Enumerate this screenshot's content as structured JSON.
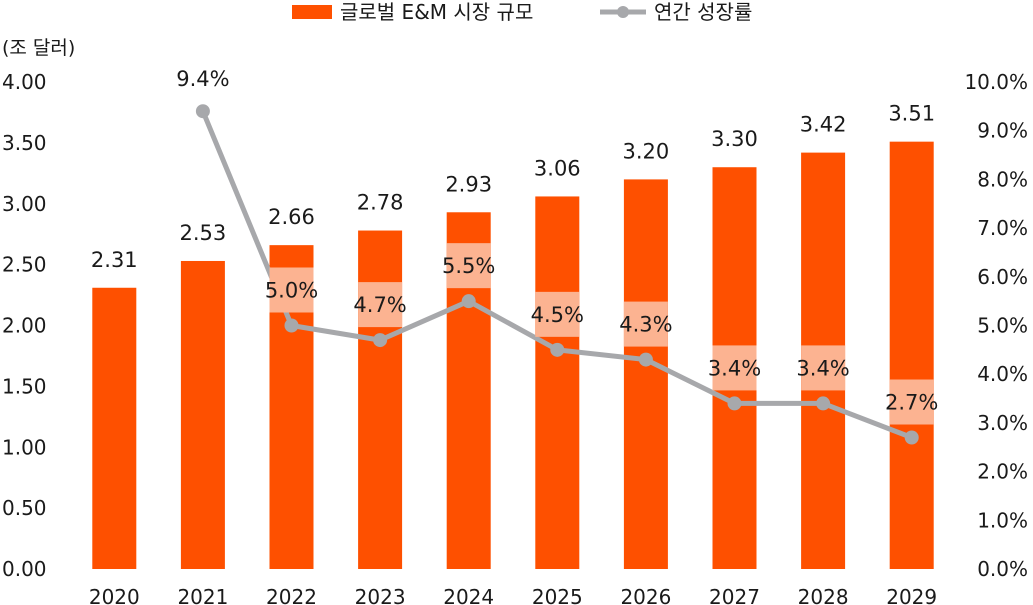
{
  "chart_data": {
    "type": "bar",
    "unit_label": "(조 달러)",
    "categories": [
      "2020",
      "2021",
      "2022",
      "2023",
      "2024",
      "2025",
      "2026",
      "2027",
      "2028",
      "2029"
    ],
    "series": [
      {
        "name": "글로벌 E&M 시장 규모",
        "type": "bar",
        "axis": "left",
        "values": [
          2.31,
          2.53,
          2.66,
          2.78,
          2.93,
          3.06,
          3.2,
          3.3,
          3.42,
          3.51
        ],
        "labels": [
          "2.31",
          "2.53",
          "2.66",
          "2.78",
          "2.93",
          "3.06",
          "3.20",
          "3.30",
          "3.42",
          "3.51"
        ]
      },
      {
        "name": "연간 성장률",
        "type": "line",
        "axis": "right",
        "values": [
          null,
          9.4,
          5.0,
          4.7,
          5.5,
          4.5,
          4.3,
          3.4,
          3.4,
          2.7
        ],
        "labels": [
          "",
          "9.4%",
          "5.0%",
          "4.7%",
          "5.5%",
          "4.5%",
          "4.3%",
          "3.4%",
          "3.4%",
          "2.7%"
        ]
      }
    ],
    "left_axis": {
      "ylim": [
        0,
        4.0
      ],
      "ticks": [
        "0.00",
        "0.50",
        "1.00",
        "1.50",
        "2.00",
        "2.50",
        "3.00",
        "3.50",
        "4.00"
      ]
    },
    "right_axis": {
      "ylim": [
        0,
        10
      ],
      "ticks": [
        "0.0%",
        "1.0%",
        "2.0%",
        "3.0%",
        "4.0%",
        "5.0%",
        "6.0%",
        "7.0%",
        "8.0%",
        "9.0%",
        "10.0%"
      ]
    },
    "grid": false,
    "legend_position": "top-center"
  },
  "colors": {
    "bar": "#fe5000",
    "line": "#a7a8ab",
    "label_box": "#fcb391"
  }
}
